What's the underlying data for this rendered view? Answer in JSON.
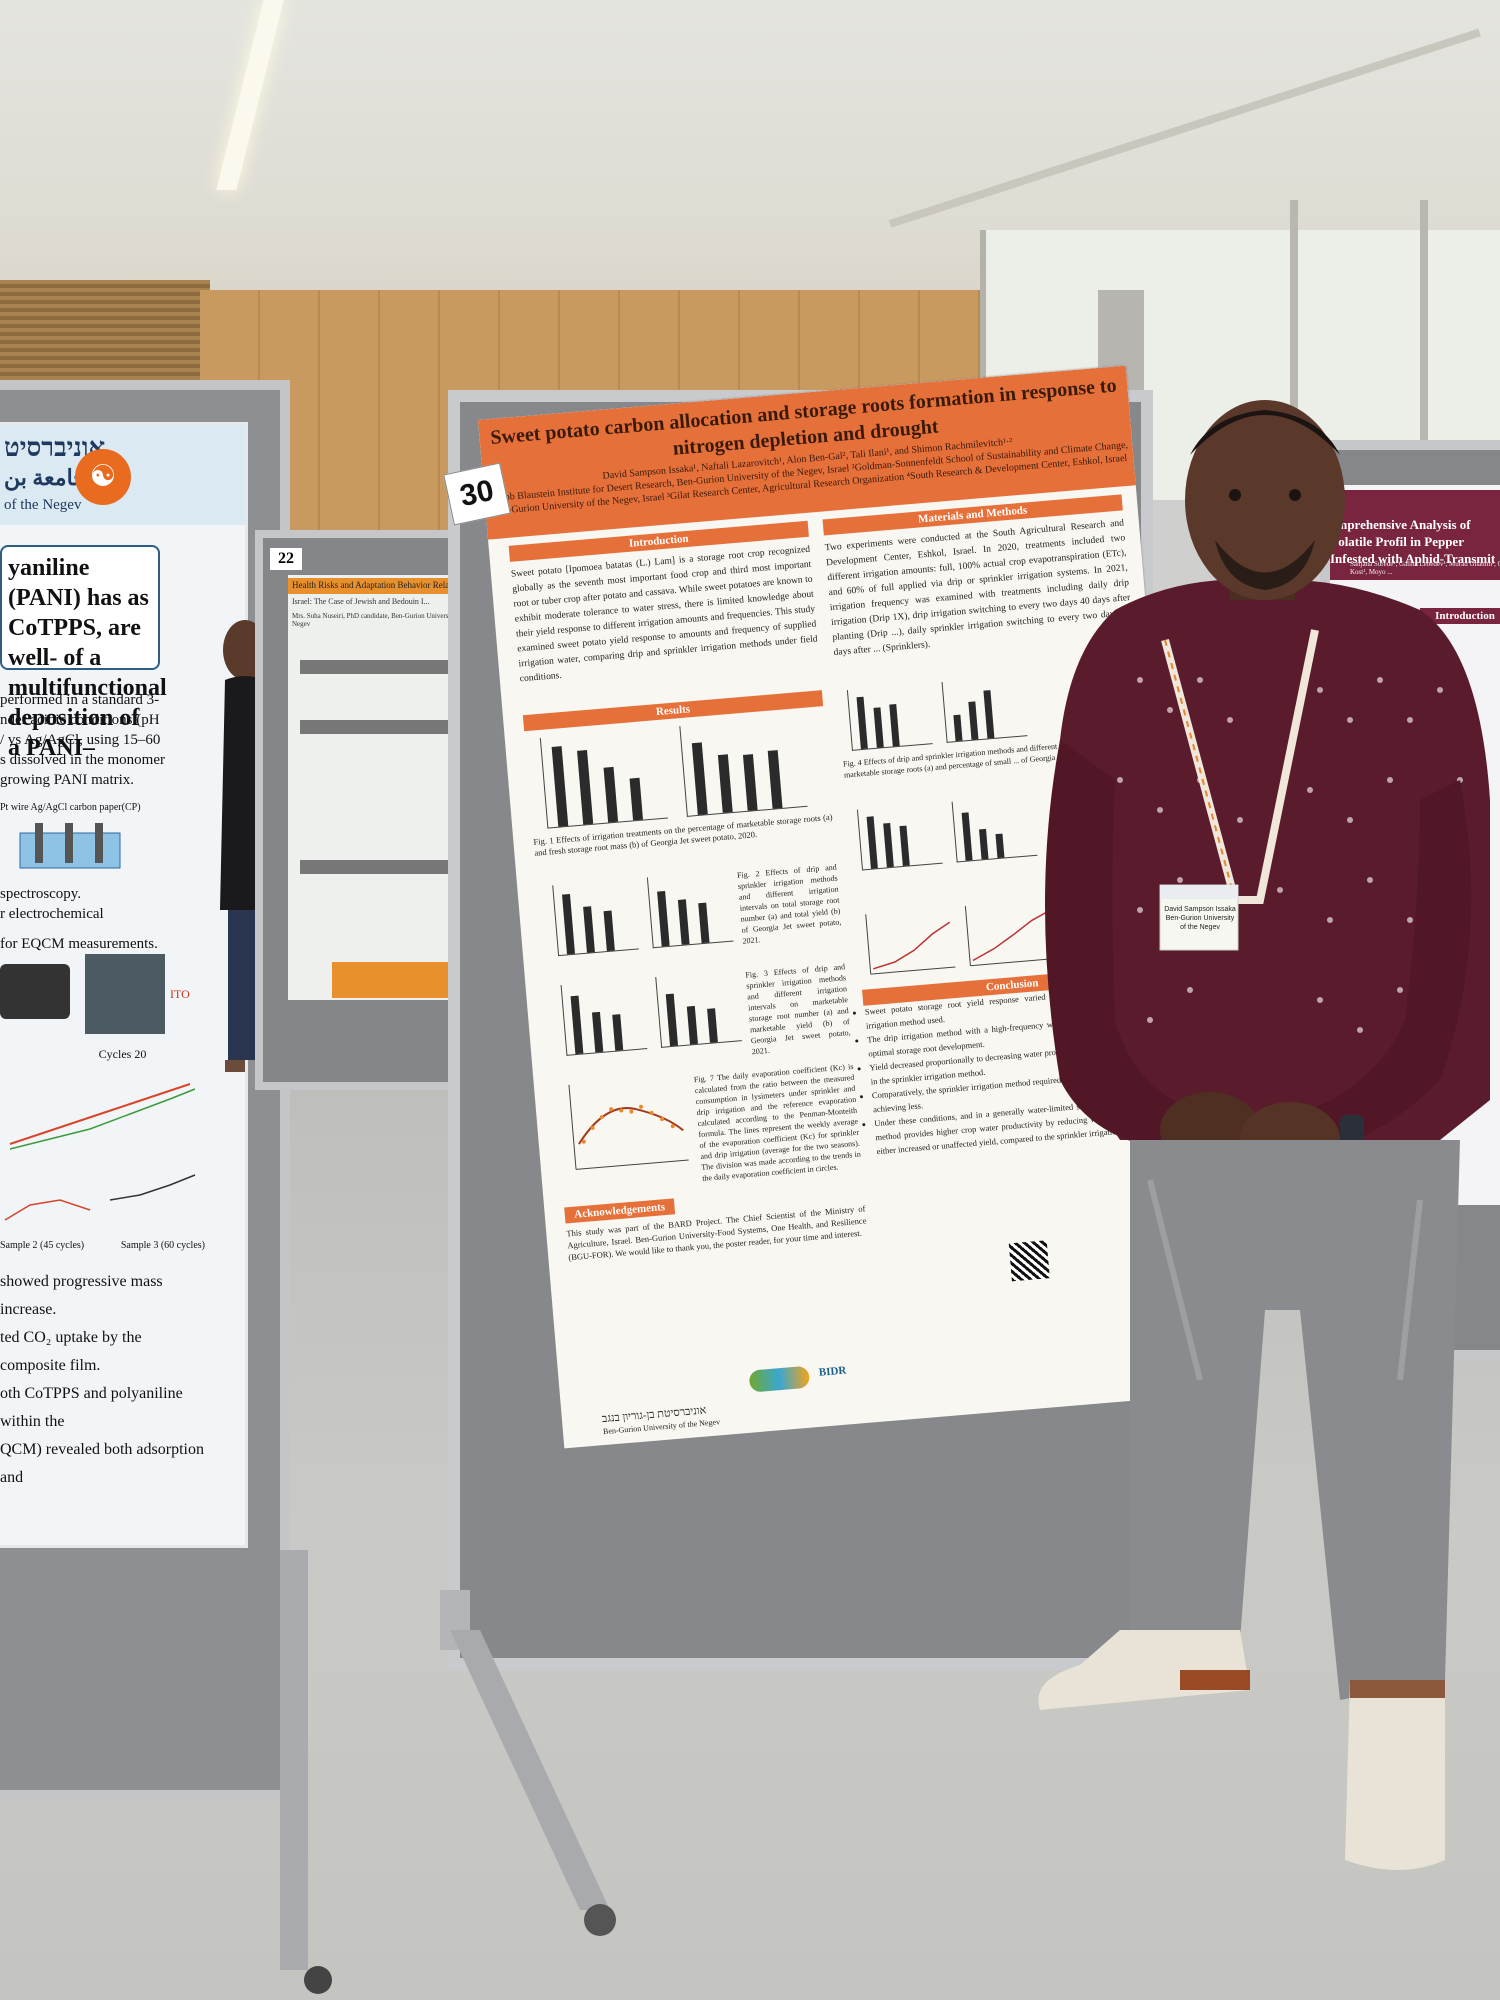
{
  "scene": {
    "description_colors": {
      "poster_accent": "#e6703a",
      "shirt": "#5a1b2c",
      "jeans": "#8a8b8e",
      "board_frame": "#c8cacd"
    }
  },
  "main_poster": {
    "number": "30",
    "title": "Sweet potato carbon allocation and storage roots formation in response to nitrogen depletion and drought",
    "authors": "David Sampson Issaka¹, Naftali Lazarovitch¹, Alon Ben-Gal², Tali Ilani¹, and Shimon Rachmilevitch¹·²",
    "affiliations": "¹Jacob Blaustein Institute for Desert Research, Ben-Gurion University of the Negev, Israel ²Goldman-Sonnenfeldt School of Sustainability and Climate Change, Ben-Gurion University of the Negev, Israel ³Gilat Research Center, Agricultural Research Organization ⁴South Research & Development Center, Eshkol, Israel",
    "intro_head": "Introduction",
    "intro_text": "Sweet potato [Ipomoea batatas (L.) Lam] is a storage root crop recognized globally as the seventh most important food crop and third most important root or tuber crop after potato and cassava. While sweet potatoes are known to exhibit moderate tolerance to water stress, there is limited knowledge about their yield response to different irrigation amounts and frequencies. This study examined sweet potato yield response to amounts and frequency of supplied irrigation water, comparing drip and sprinkler irrigation methods under field conditions.",
    "methods_head": "Materials and Methods",
    "methods_text": "Two experiments were conducted at the South Agricultural Research and Development Center, Eshkol, Israel. In 2020, treatments included two different irrigation amounts: full, 100% actual crop evapotranspiration (ETc), and 60% of full applied via drip or sprinkler irrigation systems. In 2021, irrigation frequency was examined with treatments including daily drip irrigation (Drip 1X), drip irrigation switching to every two days 40 days after planting (Drip ...), daily sprinkler irrigation switching to every two days 40 days after ... (Sprinklers).",
    "results_head": "Results",
    "fig1": "Fig. 1 Effects of irrigation treatments on the percentage of marketable storage roots (a) and fresh storage root mass (b) of Georgia Jet sweet potato, 2020.",
    "fig2": "Fig. 2 Effects of drip and sprinkler irrigation methods and different irrigation intervals on total storage root number (a) and total yield (b) of Georgia Jet sweet potato, 2021.",
    "fig3": "Fig. 3 Effects of drip and sprinkler irrigation methods and different irrigation intervals on marketable storage root number (a) and marketable yield (b) of Georgia Jet sweet potato, 2021.",
    "fig4": "Fig. 4 Effects of drip and sprinkler irrigation methods and different irrigation ... percentage of marketable storage roots (a) and percentage of small ... of Georgia Jet sweet potato, 2021.",
    "fig7": "Fig. 7 The daily evaporation coefficient (Kc) is calculated from the ratio between the measured consumption in lysimeters under sprinkler and drip irrigation and the reference evaporation calculated according to the Penman-Monteith formula. The lines represent the weekly average of the evaporation coefficient (Kc) for sprinkler and drip irrigation (average for the two seasons). The division was made according to the trends in the daily evaporation coefficient in circles.",
    "conclusion_head": "Conclusion",
    "conclusion_items": [
      "Sweet potato storage root yield response varied significantly depending on the irrigation method used.",
      "The drip irrigation method with a high-frequency water supply is recommended for optimal storage root development.",
      "Yield decreased proportionally to decreasing water productivity and was more profound in the sprinkler irrigation method.",
      "Comparatively, the sprinkler irrigation method required higher irrigation amounts while achieving less.",
      "Under these conditions, and in a generally water-limited situation, the drip irrigation method provides higher crop water productivity by reducing water consumption with either increased or unaffected yield, compared to the sprinkler irrigation method."
    ],
    "ack_head": "Acknowledgements",
    "ack_text": "This study was part of the BARD Project. The Chief Scientist of the Ministry of Agriculture, Israel. Ben-Gurion University-Food Systems, One Health, and Resilience (BGU-FOR). We would like to thank you, the poster reader, for your time and interest.",
    "university": "אוניברסיטת בן-גוריון בנגב",
    "university_en": "Ben-Gurion University of the Negev",
    "bidr": "BIDR"
  },
  "left_poster": {
    "hebrew_header": "אוניברסיט",
    "arabic_header": "جامعة بن",
    "negev": "of the Negev",
    "box_text": "yaniline (PANI) has as CoTPPS, are well- of a multifunctional deposition of a PANI–",
    "body_lines": [
      "performed in a standard 3-",
      "nder acidic conditions (pH",
      "/ vs Ag/AgCl, using 15–60",
      "s dissolved in the monomer",
      "growing PANI matrix.",
      "Pt wire  Ag/AgCl  carbon paper(CP)",
      "spectroscopy.",
      "r electrochemical",
      "for EQCM measurements.",
      "ITO",
      "Cycles 20",
      "Sample 2 (45 cycles)",
      "Sample 3 (60 cycles)",
      "showed progressive mass increase.",
      "ted CO₂ uptake by the composite film.",
      "oth CoTPPS and polyaniline within the",
      "QCM) revealed both adsorption and"
    ]
  },
  "board22": {
    "number": "22",
    "title": "Health Risks and Adaptation Behavior Related to Clima...",
    "sub": "Israel: The Case of Jewish and Bedouin I...",
    "author": "Mrs. Suha Nuseiri, PhD candidate, Ben-Gurion University of the Negev"
  },
  "right_poster": {
    "title": "omprehensive Analysis of Volatile Profil in Pepper Infested with Aphid-Transmit",
    "authors": "Sanjana Surede¹, Galina Lebedev¹, Murad Ghanim¹, Or Kost¹, Moyo ...",
    "intro": "Introduction"
  },
  "badge": {
    "name": "David Sampson Issaka",
    "org": "Ben-Gurion University of the Negev"
  }
}
